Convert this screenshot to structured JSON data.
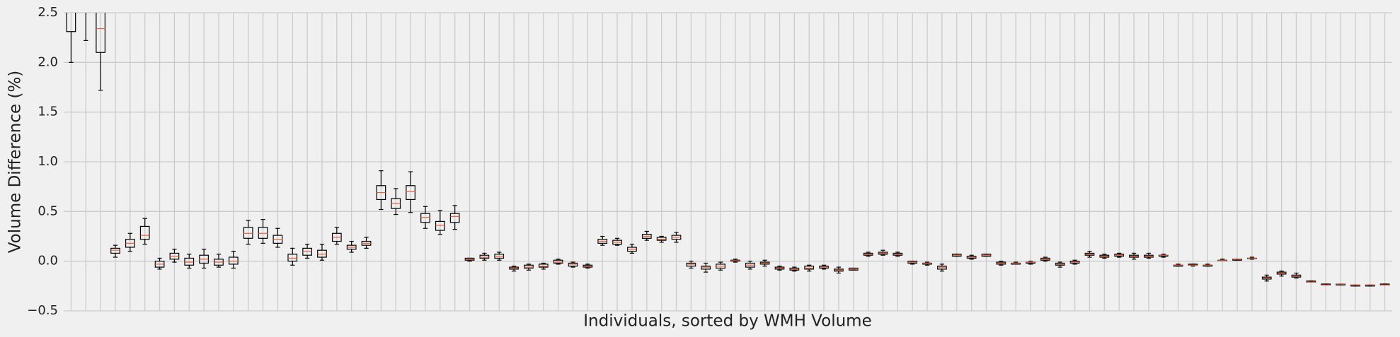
{
  "chart_data": {
    "type": "box",
    "xlabel": "Individuals, sorted by WMH Volume",
    "ylabel": "Volume Difference (%)",
    "ylim": [
      -0.5,
      2.5
    ],
    "yticks": [
      {
        "value": -0.5,
        "label": "−0.5"
      },
      {
        "value": 0,
        "label": "0.0"
      },
      0.5,
      {
        "value": 1,
        "label": "1.0"
      },
      1.5,
      {
        "value": 2,
        "label": "2.0"
      },
      2.5
    ],
    "grid": true,
    "box_color": "#000000",
    "median_color": "#e5603f",
    "boxes": [
      [
        2.0,
        2.31,
        2.6,
        2.9,
        3.3
      ],
      [
        2.22,
        2.6,
        2.8,
        3.0,
        3.4
      ],
      [
        1.72,
        2.1,
        2.34,
        2.7,
        3.2
      ],
      [
        0.04,
        0.08,
        0.11,
        0.13,
        0.16
      ],
      [
        0.1,
        0.14,
        0.18,
        0.22,
        0.28
      ],
      [
        0.17,
        0.22,
        0.26,
        0.35,
        0.43
      ],
      [
        -0.08,
        -0.06,
        -0.03,
        0,
        0.03
      ],
      [
        -0.01,
        0.02,
        0.05,
        0.08,
        0.12
      ],
      [
        -0.07,
        -0.04,
        -0.01,
        0.03,
        0.07
      ],
      [
        -0.07,
        -0.02,
        0.02,
        0.06,
        0.12
      ],
      [
        -0.06,
        -0.04,
        -0.01,
        0.02,
        0.07
      ],
      [
        -0.07,
        -0.03,
        0,
        0.04,
        0.1
      ],
      [
        0.17,
        0.23,
        0.28,
        0.34,
        0.41
      ],
      [
        0.18,
        0.23,
        0.28,
        0.34,
        0.42
      ],
      [
        0.14,
        0.18,
        0.22,
        0.26,
        0.33
      ],
      [
        -0.04,
        0,
        0.03,
        0.07,
        0.13
      ],
      [
        0.03,
        0.06,
        0.1,
        0.13,
        0.17
      ],
      [
        0.01,
        0.04,
        0.07,
        0.11,
        0.17
      ],
      [
        0.17,
        0.2,
        0.24,
        0.28,
        0.34
      ],
      [
        0.09,
        0.12,
        0.14,
        0.16,
        0.2
      ],
      [
        0.13,
        0.16,
        0.18,
        0.2,
        0.24
      ],
      [
        0.52,
        0.62,
        0.69,
        0.76,
        0.91
      ],
      [
        0.47,
        0.53,
        0.58,
        0.63,
        0.73
      ],
      [
        0.49,
        0.62,
        0.7,
        0.76,
        0.9
      ],
      [
        0.33,
        0.39,
        0.44,
        0.48,
        0.55
      ],
      [
        0.27,
        0.31,
        0.36,
        0.4,
        0.51
      ],
      [
        0.32,
        0.39,
        0.45,
        0.48,
        0.56
      ],
      [
        0,
        0.01,
        0.02,
        0.03,
        0.03
      ],
      [
        0.01,
        0.03,
        0.04,
        0.06,
        0.08
      ],
      [
        0.01,
        0.03,
        0.05,
        0.07,
        0.09
      ],
      [
        -0.1,
        -0.08,
        -0.07,
        -0.06,
        -0.05
      ],
      [
        -0.09,
        -0.07,
        -0.06,
        -0.04,
        -0.03
      ],
      [
        -0.08,
        -0.06,
        -0.05,
        -0.03,
        -0.02
      ],
      [
        -0.03,
        -0.02,
        -0.01,
        0.01,
        0.02
      ],
      [
        -0.06,
        -0.05,
        -0.03,
        -0.02,
        -0.01
      ],
      [
        -0.07,
        -0.06,
        -0.05,
        -0.04,
        -0.03
      ],
      [
        0.16,
        0.18,
        0.2,
        0.22,
        0.25
      ],
      [
        0.16,
        0.17,
        0.19,
        0.21,
        0.23
      ],
      [
        0.08,
        0.1,
        0.12,
        0.14,
        0.17
      ],
      [
        0.21,
        0.23,
        0.25,
        0.27,
        0.3
      ],
      [
        0.19,
        0.21,
        0.22,
        0.24,
        0.25
      ],
      [
        0.19,
        0.22,
        0.24,
        0.26,
        0.29
      ],
      [
        -0.07,
        -0.05,
        -0.03,
        -0.02,
        0
      ],
      [
        -0.11,
        -0.08,
        -0.06,
        -0.05,
        -0.02
      ],
      [
        -0.09,
        -0.07,
        -0.05,
        -0.03,
        -0.01
      ],
      [
        -0.01,
        0,
        0.005,
        0.01,
        0.02
      ],
      [
        -0.08,
        -0.06,
        -0.04,
        -0.02,
        0
      ],
      [
        -0.05,
        -0.03,
        -0.02,
        -0.01,
        0.01
      ],
      [
        -0.09,
        -0.08,
        -0.07,
        -0.06,
        -0.05
      ],
      [
        -0.1,
        -0.09,
        -0.08,
        -0.07,
        -0.06
      ],
      [
        -0.1,
        -0.08,
        -0.07,
        -0.05,
        -0.04
      ],
      [
        -0.08,
        -0.07,
        -0.06,
        -0.05,
        -0.04
      ],
      [
        -0.12,
        -0.1,
        -0.09,
        -0.08,
        -0.06
      ],
      [
        -0.09,
        -0.09,
        -0.08,
        -0.07,
        -0.07
      ],
      [
        0.05,
        0.06,
        0.07,
        0.08,
        0.09
      ],
      [
        0.06,
        0.07,
        0.08,
        0.09,
        0.11
      ],
      [
        0.05,
        0.06,
        0.07,
        0.08,
        0.09
      ],
      [
        -0.03,
        -0.02,
        -0.01,
        0,
        0
      ],
      [
        -0.04,
        -0.03,
        -0.02,
        -0.02,
        -0.01
      ],
      [
        -0.1,
        -0.08,
        -0.06,
        -0.05,
        -0.03
      ],
      [
        0.05,
        0.05,
        0.06,
        0.07,
        0.07
      ],
      [
        0.02,
        0.03,
        0.04,
        0.05,
        0.06
      ],
      [
        0.05,
        0.05,
        0.06,
        0.07,
        0.07
      ],
      [
        -0.04,
        -0.03,
        -0.02,
        -0.01,
        0
      ],
      [
        -0.03,
        -0.03,
        -0.02,
        -0.02,
        -0.01
      ],
      [
        -0.03,
        -0.02,
        -0.01,
        -0.01,
        0
      ],
      [
        0,
        0.01,
        0.02,
        0.03,
        0.04
      ],
      [
        -0.06,
        -0.04,
        -0.03,
        -0.02,
        -0.01
      ],
      [
        -0.03,
        -0.02,
        -0.01,
        0,
        0.01
      ],
      [
        0.04,
        0.06,
        0.07,
        0.08,
        0.1
      ],
      [
        0.03,
        0.04,
        0.05,
        0.06,
        0.07
      ],
      [
        0.04,
        0.05,
        0.06,
        0.07,
        0.08
      ],
      [
        0.02,
        0.04,
        0.05,
        0.06,
        0.08
      ],
      [
        0.03,
        0.04,
        0.05,
        0.06,
        0.08
      ],
      [
        0.04,
        0.05,
        0.06,
        0.06,
        0.07
      ],
      [
        -0.05,
        -0.05,
        -0.04,
        -0.04,
        -0.03
      ],
      [
        -0.05,
        -0.04,
        -0.04,
        -0.03,
        -0.03
      ],
      [
        -0.05,
        -0.05,
        -0.04,
        -0.04,
        -0.03
      ],
      [
        0.01,
        0.01,
        0.01,
        0.01,
        0.02
      ],
      [
        0.01,
        0.01,
        0.02,
        0.02,
        0.02
      ],
      [
        0.02,
        0.03,
        0.03,
        0.03,
        0.04
      ],
      [
        -0.2,
        -0.18,
        -0.17,
        -0.16,
        -0.14
      ],
      [
        -0.15,
        -0.13,
        -0.12,
        -0.11,
        -0.1
      ],
      [
        -0.17,
        -0.16,
        -0.15,
        -0.14,
        -0.12
      ],
      [
        -0.21,
        -0.21,
        -0.21,
        -0.2,
        -0.2
      ],
      [
        -0.24,
        -0.24,
        -0.24,
        -0.23,
        -0.23
      ],
      [
        -0.24,
        -0.24,
        -0.23,
        -0.23,
        -0.23
      ],
      [
        -0.25,
        -0.25,
        -0.24,
        -0.24,
        -0.24
      ],
      [
        -0.25,
        -0.25,
        -0.24,
        -0.24,
        -0.24
      ],
      [
        -0.24,
        -0.24,
        -0.24,
        -0.23,
        -0.23
      ]
    ]
  }
}
